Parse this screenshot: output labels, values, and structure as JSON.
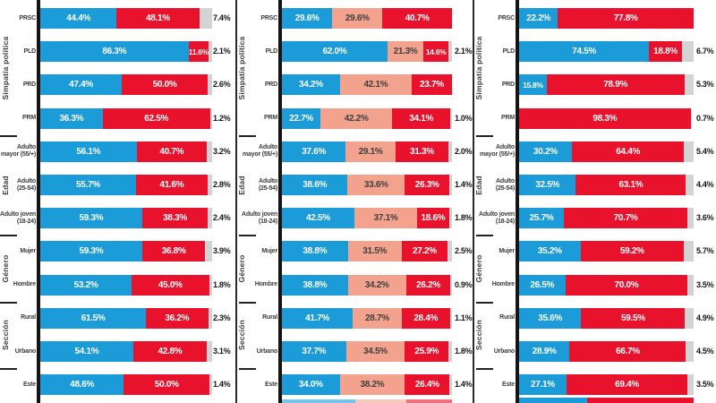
{
  "colors": {
    "blue": "#1b9cd8",
    "salmon": "#f3a28e",
    "red": "#e8122d",
    "gray": "#d2d3d5",
    "axis": "#141414",
    "label_dark": "#3c3c3c",
    "label_white": "#ffffff"
  },
  "row_groups": [
    {
      "label": "Simpatía política",
      "slug": "simpatia-politica",
      "from": 0,
      "to": 3
    },
    {
      "label": "Edad",
      "slug": "edad",
      "from": 4,
      "to": 6
    },
    {
      "label": "Género",
      "slug": "genero",
      "from": 7,
      "to": 8
    },
    {
      "label": "Sección",
      "slug": "seccion",
      "from": 9,
      "to": 10
    }
  ],
  "categories": [
    "PRSC",
    "PLD",
    "PRD",
    "PRM",
    "Adulto mayor (55/+)",
    "Adulto (25-54)",
    "Adulto joven (18-24)",
    "Mujer",
    "Hombre",
    "Rural",
    "Urbano",
    "Este"
  ],
  "categories_display": [
    "PRSC",
    "PLD",
    "PRD",
    "PRM",
    "Adulto|mayor (55/+)",
    "Adulto|(25-54)",
    "Adulto joven|(18-24)",
    "Mujer",
    "Hombre",
    "Rural",
    "Urbano",
    "Este"
  ],
  "chart_data": [
    {
      "type": "bar",
      "orientation": "horizontal",
      "stacked": true,
      "value_unit": "%",
      "x_range": [
        0,
        100
      ],
      "categories": [
        "PRSC",
        "PLD",
        "PRD",
        "PRM",
        "Adulto mayor (55/+)",
        "Adulto (25-54)",
        "Adulto joven (18-24)",
        "Mujer",
        "Hombre",
        "Rural",
        "Urbano",
        "Este"
      ],
      "series": [
        {
          "name": "blue",
          "color_key": "blue",
          "values": [
            44.4,
            86.3,
            47.4,
            36.3,
            56.1,
            55.7,
            59.3,
            59.3,
            53.2,
            61.5,
            54.1,
            48.6
          ]
        },
        {
          "name": "red",
          "color_key": "red",
          "values": [
            48.1,
            11.6,
            50.0,
            62.5,
            40.7,
            41.6,
            38.3,
            36.8,
            45.0,
            36.2,
            42.8,
            50.0
          ]
        },
        {
          "name": "gray",
          "color_key": "gray",
          "values": [
            7.4,
            2.1,
            2.6,
            1.2,
            3.2,
            2.8,
            2.4,
            3.9,
            1.8,
            2.3,
            3.1,
            1.4
          ]
        }
      ],
      "clipped_next_row": null
    },
    {
      "type": "bar",
      "orientation": "horizontal",
      "stacked": true,
      "value_unit": "%",
      "x_range": [
        0,
        100
      ],
      "categories": [
        "PRSC",
        "PLD",
        "PRD",
        "PRM",
        "Adulto mayor (55/+)",
        "Adulto (25-54)",
        "Adulto joven (18-24)",
        "Mujer",
        "Hombre",
        "Rural",
        "Urbano",
        "Este"
      ],
      "series": [
        {
          "name": "blue",
          "color_key": "blue",
          "values": [
            29.6,
            62.0,
            34.2,
            22.7,
            37.6,
            38.6,
            42.5,
            38.8,
            38.8,
            41.7,
            37.7,
            34.0
          ]
        },
        {
          "name": "salmon",
          "color_key": "salmon",
          "values": [
            29.6,
            21.3,
            42.1,
            42.2,
            29.1,
            33.6,
            37.1,
            31.5,
            34.2,
            28.7,
            34.5,
            38.2
          ]
        },
        {
          "name": "red",
          "color_key": "red",
          "values": [
            40.7,
            14.6,
            23.7,
            34.1,
            31.3,
            26.3,
            18.6,
            27.2,
            26.2,
            28.4,
            25.9,
            26.4
          ]
        },
        {
          "name": "gray",
          "color_key": "gray",
          "values": [
            null,
            2.1,
            null,
            1.0,
            2.0,
            1.4,
            1.8,
            2.5,
            0.9,
            1.1,
            1.8,
            1.4
          ]
        }
      ],
      "clipped_next_row": {
        "segments": [
          {
            "color_key": "blue",
            "pct": 43
          },
          {
            "color_key": "salmon",
            "pct": 30
          },
          {
            "color_key": "red",
            "pct": 27
          }
        ]
      }
    },
    {
      "type": "bar",
      "orientation": "horizontal",
      "stacked": true,
      "value_unit": "%",
      "x_range": [
        0,
        100
      ],
      "categories": [
        "PRSC",
        "PLD",
        "PRD",
        "PRM",
        "Adulto mayor (55/+)",
        "Adulto (25-54)",
        "Adulto joven (18-24)",
        "Mujer",
        "Hombre",
        "Rural",
        "Urbano",
        "Este"
      ],
      "series": [
        {
          "name": "blue",
          "color_key": "blue",
          "values": [
            22.2,
            74.5,
            15.8,
            null,
            30.2,
            32.5,
            25.7,
            35.2,
            26.5,
            35.6,
            28.9,
            27.1
          ]
        },
        {
          "name": "red",
          "color_key": "red",
          "values": [
            77.8,
            18.8,
            78.9,
            98.3,
            64.4,
            63.1,
            70.7,
            59.2,
            70.0,
            59.5,
            66.7,
            69.4
          ]
        },
        {
          "name": "gray",
          "color_key": "gray",
          "values": [
            null,
            6.7,
            5.3,
            0.7,
            5.4,
            4.4,
            3.6,
            5.7,
            3.5,
            4.9,
            4.5,
            3.5
          ]
        }
      ],
      "clipped_next_row": {
        "segments": [
          {
            "color_key": "blue",
            "pct": 39
          },
          {
            "color_key": "red",
            "pct": 61
          }
        ]
      }
    }
  ]
}
